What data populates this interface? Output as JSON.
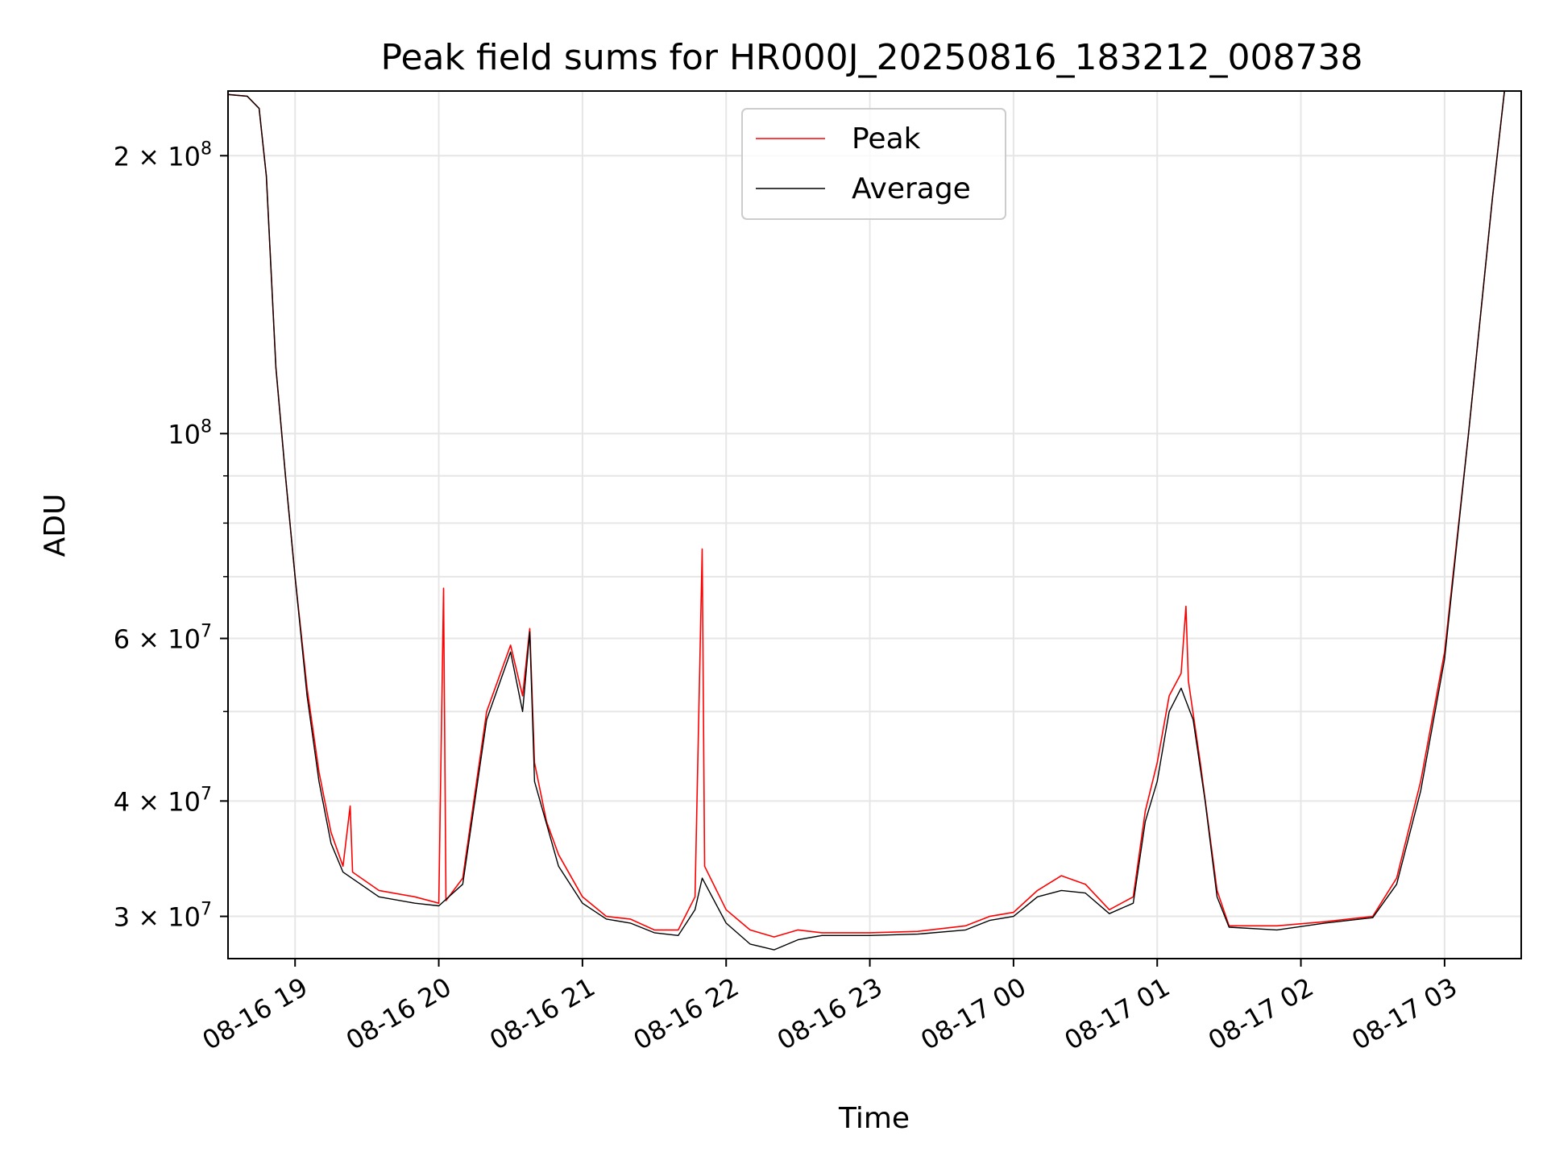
{
  "chart_data": {
    "type": "line",
    "title": "Peak field sums for HR000J_20250816_183212_008738",
    "xlabel": "Time",
    "ylabel": "ADU",
    "yscale": "log",
    "ylim": [
      27000000,
      235000000
    ],
    "xlim": [
      "2025-08-16 18:32",
      "2025-08-17 03:32"
    ],
    "grid": true,
    "legend_position": "upper center",
    "x_ticks": [
      {
        "label": "08-16 19",
        "value": "2025-08-16 19:00"
      },
      {
        "label": "08-16 20",
        "value": "2025-08-16 20:00"
      },
      {
        "label": "08-16 21",
        "value": "2025-08-16 21:00"
      },
      {
        "label": "08-16 22",
        "value": "2025-08-16 22:00"
      },
      {
        "label": "08-16 23",
        "value": "2025-08-16 23:00"
      },
      {
        "label": "08-17 00",
        "value": "2025-08-17 00:00"
      },
      {
        "label": "08-17 01",
        "value": "2025-08-17 01:00"
      },
      {
        "label": "08-17 02",
        "value": "2025-08-17 02:00"
      },
      {
        "label": "08-17 03",
        "value": "2025-08-17 03:00"
      }
    ],
    "y_ticks": [
      {
        "mantissa": "3 × 10",
        "exp": "7",
        "value": 30000000
      },
      {
        "mantissa": "4 × 10",
        "exp": "7",
        "value": 40000000
      },
      {
        "mantissa": "6 × 10",
        "exp": "7",
        "value": 60000000
      },
      {
        "mantissa": "10",
        "exp": "8",
        "value": 100000000
      },
      {
        "mantissa": "2 × 10",
        "exp": "8",
        "value": 200000000
      }
    ],
    "y_minor_ticks": [
      50000000,
      70000000,
      80000000,
      90000000
    ],
    "series": [
      {
        "name": "Peak",
        "color": "#ff0000",
        "points": [
          [
            "2025-08-16 18:32",
            233000000
          ],
          [
            "2025-08-16 18:40",
            232000000
          ],
          [
            "2025-08-16 18:45",
            225000000
          ],
          [
            "2025-08-16 18:48",
            190000000
          ],
          [
            "2025-08-16 18:52",
            118000000
          ],
          [
            "2025-08-16 18:56",
            90000000
          ],
          [
            "2025-08-16 19:00",
            70000000
          ],
          [
            "2025-08-16 19:05",
            53000000
          ],
          [
            "2025-08-16 19:10",
            43000000
          ],
          [
            "2025-08-16 19:15",
            37000000
          ],
          [
            "2025-08-16 19:20",
            34000000
          ],
          [
            "2025-08-16 19:23",
            39500000
          ],
          [
            "2025-08-16 19:24",
            33500000
          ],
          [
            "2025-08-16 19:35",
            32000000
          ],
          [
            "2025-08-16 19:50",
            31500000
          ],
          [
            "2025-08-16 20:00",
            31000000
          ],
          [
            "2025-08-16 20:02",
            68000000
          ],
          [
            "2025-08-16 20:03",
            31200000
          ],
          [
            "2025-08-16 20:10",
            33000000
          ],
          [
            "2025-08-16 20:20",
            50000000
          ],
          [
            "2025-08-16 20:30",
            59000000
          ],
          [
            "2025-08-16 20:35",
            52000000
          ],
          [
            "2025-08-16 20:38",
            61500000
          ],
          [
            "2025-08-16 20:40",
            44000000
          ],
          [
            "2025-08-16 20:45",
            38000000
          ],
          [
            "2025-08-16 20:50",
            35000000
          ],
          [
            "2025-08-16 21:00",
            31500000
          ],
          [
            "2025-08-16 21:10",
            30000000
          ],
          [
            "2025-08-16 21:20",
            29800000
          ],
          [
            "2025-08-16 21:30",
            29000000
          ],
          [
            "2025-08-16 21:40",
            29000000
          ],
          [
            "2025-08-16 21:47",
            31500000
          ],
          [
            "2025-08-16 21:50",
            75000000
          ],
          [
            "2025-08-16 21:51",
            34000000
          ],
          [
            "2025-08-16 22:00",
            30500000
          ],
          [
            "2025-08-16 22:10",
            29000000
          ],
          [
            "2025-08-16 22:20",
            28500000
          ],
          [
            "2025-08-16 22:30",
            29000000
          ],
          [
            "2025-08-16 22:40",
            28800000
          ],
          [
            "2025-08-16 22:50",
            28800000
          ],
          [
            "2025-08-16 23:00",
            28800000
          ],
          [
            "2025-08-16 23:20",
            28900000
          ],
          [
            "2025-08-16 23:40",
            29300000
          ],
          [
            "2025-08-16 23:50",
            30000000
          ],
          [
            "2025-08-17 00:00",
            30300000
          ],
          [
            "2025-08-17 00:10",
            32000000
          ],
          [
            "2025-08-17 00:20",
            33200000
          ],
          [
            "2025-08-17 00:30",
            32500000
          ],
          [
            "2025-08-17 00:40",
            30500000
          ],
          [
            "2025-08-17 00:50",
            31500000
          ],
          [
            "2025-08-17 00:55",
            39000000
          ],
          [
            "2025-08-17 01:00",
            44000000
          ],
          [
            "2025-08-17 01:05",
            52000000
          ],
          [
            "2025-08-17 01:10",
            55000000
          ],
          [
            "2025-08-17 01:12",
            65000000
          ],
          [
            "2025-08-17 01:13",
            54000000
          ],
          [
            "2025-08-17 01:18",
            44000000
          ],
          [
            "2025-08-17 01:25",
            32000000
          ],
          [
            "2025-08-17 01:30",
            29300000
          ],
          [
            "2025-08-17 01:50",
            29300000
          ],
          [
            "2025-08-17 02:10",
            29600000
          ],
          [
            "2025-08-17 02:30",
            30000000
          ],
          [
            "2025-08-17 02:40",
            33000000
          ],
          [
            "2025-08-17 02:50",
            42000000
          ],
          [
            "2025-08-17 03:00",
            58000000
          ],
          [
            "2025-08-17 03:10",
            100000000
          ],
          [
            "2025-08-17 03:20",
            180000000
          ],
          [
            "2025-08-17 03:25",
            235000000
          ]
        ]
      },
      {
        "name": "Average",
        "color": "#000000",
        "points": [
          [
            "2025-08-16 18:32",
            233000000
          ],
          [
            "2025-08-16 18:40",
            232000000
          ],
          [
            "2025-08-16 18:45",
            225000000
          ],
          [
            "2025-08-16 18:48",
            190000000
          ],
          [
            "2025-08-16 18:52",
            118000000
          ],
          [
            "2025-08-16 18:56",
            90000000
          ],
          [
            "2025-08-16 19:00",
            70000000
          ],
          [
            "2025-08-16 19:05",
            52000000
          ],
          [
            "2025-08-16 19:10",
            42000000
          ],
          [
            "2025-08-16 19:15",
            36000000
          ],
          [
            "2025-08-16 19:20",
            33500000
          ],
          [
            "2025-08-16 19:35",
            31500000
          ],
          [
            "2025-08-16 19:50",
            31000000
          ],
          [
            "2025-08-16 20:00",
            30800000
          ],
          [
            "2025-08-16 20:10",
            32500000
          ],
          [
            "2025-08-16 20:20",
            49000000
          ],
          [
            "2025-08-16 20:30",
            58000000
          ],
          [
            "2025-08-16 20:35",
            50000000
          ],
          [
            "2025-08-16 20:38",
            61000000
          ],
          [
            "2025-08-16 20:40",
            42000000
          ],
          [
            "2025-08-16 20:50",
            34000000
          ],
          [
            "2025-08-16 21:00",
            31000000
          ],
          [
            "2025-08-16 21:10",
            29800000
          ],
          [
            "2025-08-16 21:20",
            29500000
          ],
          [
            "2025-08-16 21:30",
            28800000
          ],
          [
            "2025-08-16 21:40",
            28600000
          ],
          [
            "2025-08-16 21:47",
            30500000
          ],
          [
            "2025-08-16 21:50",
            33000000
          ],
          [
            "2025-08-16 22:00",
            29500000
          ],
          [
            "2025-08-16 22:10",
            28000000
          ],
          [
            "2025-08-16 22:20",
            27600000
          ],
          [
            "2025-08-16 22:30",
            28300000
          ],
          [
            "2025-08-16 22:40",
            28600000
          ],
          [
            "2025-08-16 23:00",
            28600000
          ],
          [
            "2025-08-16 23:20",
            28700000
          ],
          [
            "2025-08-16 23:40",
            29000000
          ],
          [
            "2025-08-16 23:50",
            29700000
          ],
          [
            "2025-08-17 00:00",
            30000000
          ],
          [
            "2025-08-17 00:10",
            31500000
          ],
          [
            "2025-08-17 00:20",
            32000000
          ],
          [
            "2025-08-17 00:30",
            31800000
          ],
          [
            "2025-08-17 00:40",
            30200000
          ],
          [
            "2025-08-17 00:50",
            31000000
          ],
          [
            "2025-08-17 00:55",
            38000000
          ],
          [
            "2025-08-17 01:00",
            42000000
          ],
          [
            "2025-08-17 01:05",
            50000000
          ],
          [
            "2025-08-17 01:10",
            53000000
          ],
          [
            "2025-08-17 01:15",
            49000000
          ],
          [
            "2025-08-17 01:20",
            40000000
          ],
          [
            "2025-08-17 01:25",
            31500000
          ],
          [
            "2025-08-17 01:30",
            29200000
          ],
          [
            "2025-08-17 01:50",
            29000000
          ],
          [
            "2025-08-17 02:10",
            29500000
          ],
          [
            "2025-08-17 02:30",
            29900000
          ],
          [
            "2025-08-17 02:40",
            32500000
          ],
          [
            "2025-08-17 02:50",
            41000000
          ],
          [
            "2025-08-17 03:00",
            57000000
          ],
          [
            "2025-08-17 03:10",
            100000000
          ],
          [
            "2025-08-17 03:20",
            180000000
          ],
          [
            "2025-08-17 03:25",
            235000000
          ]
        ]
      }
    ]
  }
}
